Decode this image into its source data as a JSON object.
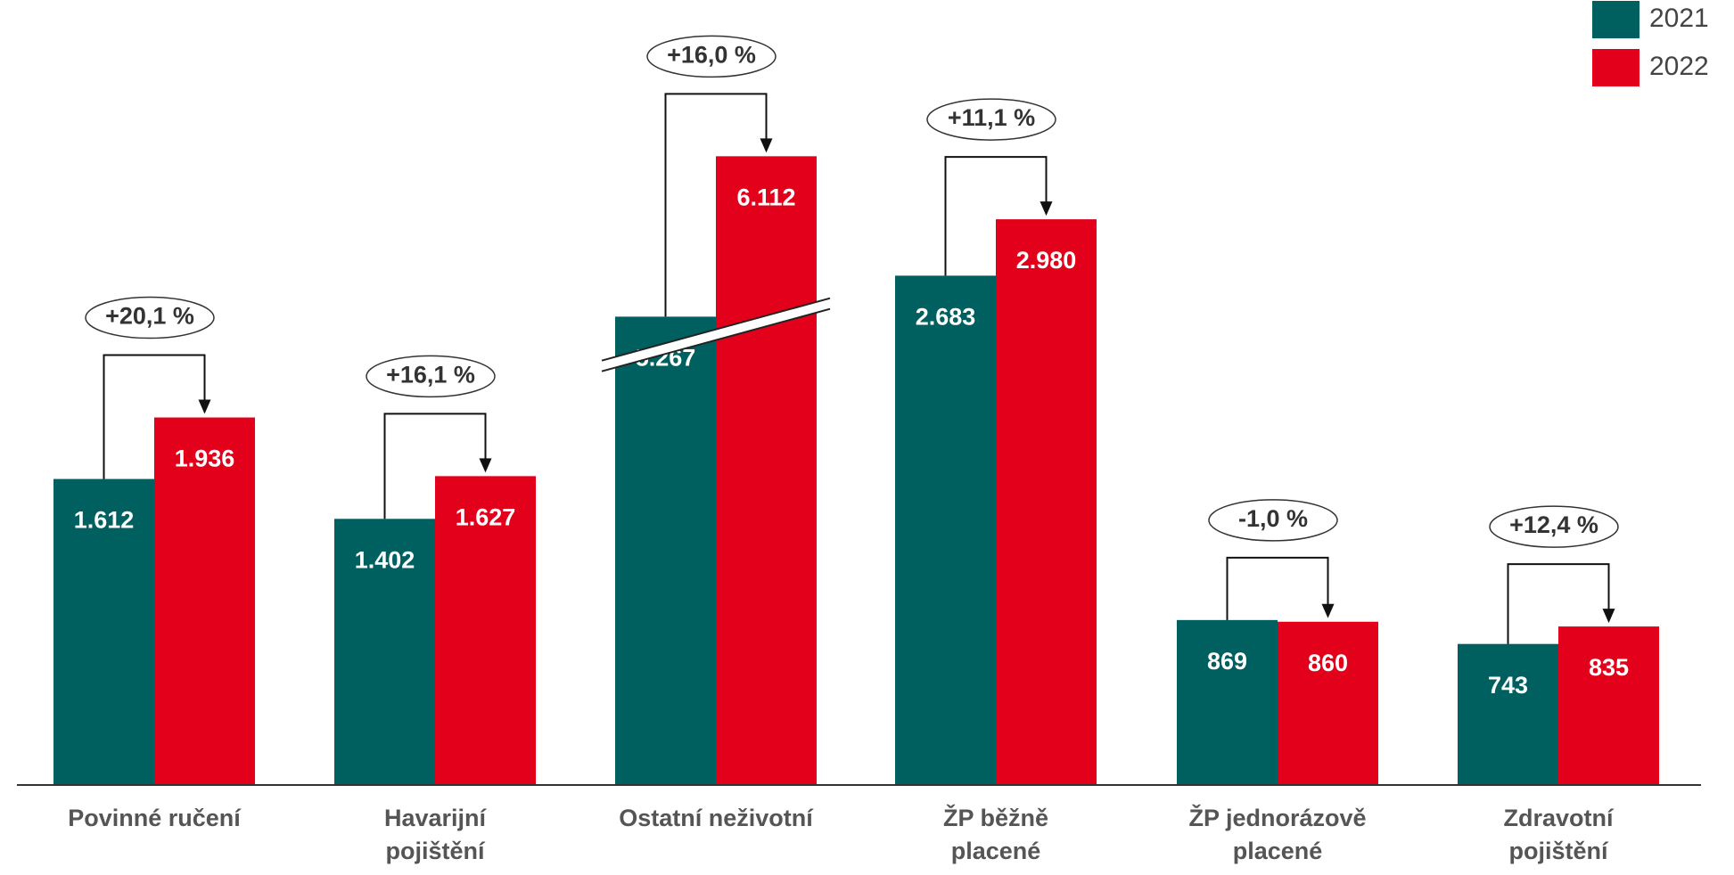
{
  "chart_data": {
    "type": "bar",
    "categories": [
      "Povinné ručení",
      "Havarijní\npojištění",
      "Ostatní neživotní",
      "ŽP běžně\nplacené",
      "ŽP jednorázově\nplacené",
      "Zdravotní\npojištění"
    ],
    "series": [
      {
        "name": "2021",
        "color": "#006060",
        "values": [
          1612,
          1402,
          5267,
          2683,
          869,
          743
        ],
        "value_labels": [
          "1.612",
          "1.402",
          "5.267",
          "2.683",
          "869",
          "743"
        ]
      },
      {
        "name": "2022",
        "color": "#e2001a",
        "values": [
          1936,
          1627,
          6112,
          2980,
          860,
          835
        ],
        "value_labels": [
          "1.936",
          "1.627",
          "6.112",
          "2.980",
          "860",
          "835"
        ]
      }
    ],
    "changes": [
      "+20,1 %",
      "+16,1 %",
      "+16,0 %",
      "+11,1 %",
      "-1,0 %",
      "+12,4 %"
    ],
    "ylim": [
      0,
      3600
    ],
    "axis_break": [
      2400,
      5200
    ],
    "legend": "top-right"
  }
}
